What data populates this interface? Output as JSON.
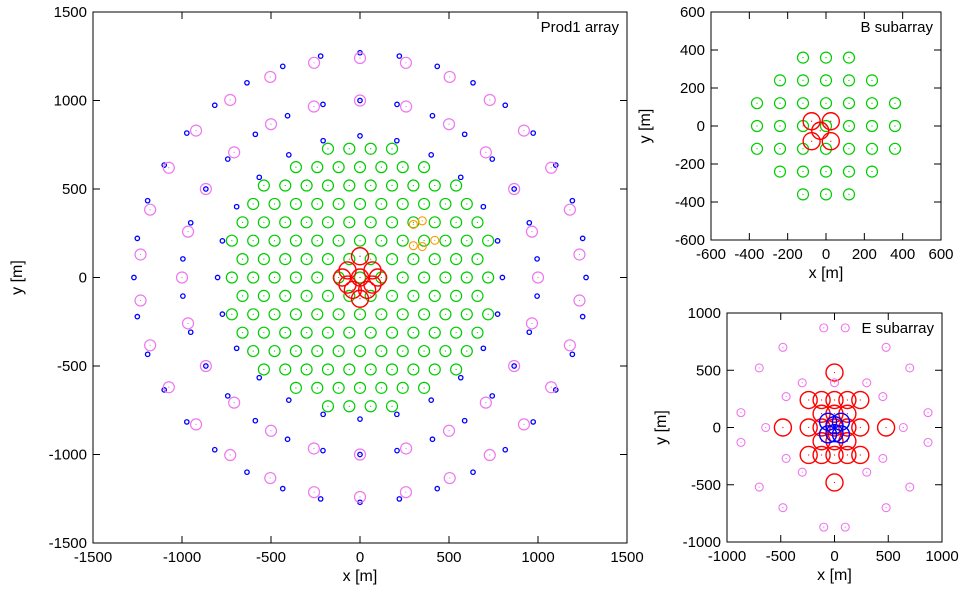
{
  "chart_data": [
    {
      "type": "scatter",
      "title": "Prod1 array",
      "xlabel": "x [m]",
      "ylabel": "y [m]",
      "xlim": [
        -1500,
        1500
      ],
      "ylim": [
        -1500,
        1500
      ],
      "xticks": [
        -1500,
        -1000,
        -500,
        0,
        500,
        1000,
        1500
      ],
      "yticks": [
        -1500,
        -1000,
        -500,
        0,
        500,
        1000,
        1500
      ],
      "grid": false,
      "legend": "none",
      "series": [
        {
          "color": "#00cc00",
          "marker": "medium-circle",
          "layout": "hexagonal grid",
          "spacing": 120,
          "max_radius": 750
        },
        {
          "color": "#ff0000",
          "marker": "large-circle",
          "points": [
            [
              0,
              120
            ],
            [
              -70,
              40
            ],
            [
              70,
              40
            ],
            [
              -70,
              -40
            ],
            [
              70,
              -40
            ],
            [
              0,
              -120
            ],
            [
              0,
              0
            ],
            [
              -40,
              -70
            ],
            [
              40,
              -70
            ],
            [
              -100,
              0
            ],
            [
              100,
              0
            ]
          ]
        },
        {
          "color": "#ff9900",
          "marker": "small-circle",
          "points": [
            [
              300,
              300
            ],
            [
              350,
              320
            ],
            [
              300,
              180
            ],
            [
              350,
              175
            ],
            [
              420,
              210
            ]
          ]
        },
        {
          "color": "#0000ff",
          "marker": "small-dot",
          "layout": "outer rings",
          "radii": [
            800,
            1000,
            1270
          ]
        },
        {
          "color": "#ee77ee",
          "marker": "medium-circle",
          "layout": "outermost rings",
          "radii": [
            1000,
            1240
          ]
        }
      ]
    },
    {
      "type": "scatter",
      "title": "B subarray",
      "xlabel": "x [m]",
      "ylabel": "y [m]",
      "xlim": [
        -600,
        600
      ],
      "ylim": [
        -600,
        600
      ],
      "xticks": [
        -600,
        -400,
        -200,
        0,
        200,
        400,
        600
      ],
      "yticks": [
        -600,
        -400,
        -200,
        0,
        200,
        400,
        600
      ],
      "grid": false,
      "series": [
        {
          "color": "#00cc00",
          "marker": "medium-circle",
          "points": [
            [
              -120,
              360
            ],
            [
              0,
              360
            ],
            [
              120,
              360
            ],
            [
              -240,
              240
            ],
            [
              -120,
              240
            ],
            [
              0,
              240
            ],
            [
              120,
              240
            ],
            [
              240,
              240
            ],
            [
              -360,
              120
            ],
            [
              -240,
              120
            ],
            [
              -120,
              120
            ],
            [
              0,
              120
            ],
            [
              120,
              120
            ],
            [
              240,
              120
            ],
            [
              360,
              120
            ],
            [
              -360,
              0
            ],
            [
              -240,
              0
            ],
            [
              -120,
              0
            ],
            [
              0,
              0
            ],
            [
              120,
              0
            ],
            [
              240,
              0
            ],
            [
              360,
              0
            ],
            [
              -360,
              -120
            ],
            [
              -240,
              -120
            ],
            [
              -120,
              -120
            ],
            [
              0,
              -120
            ],
            [
              120,
              -120
            ],
            [
              240,
              -120
            ],
            [
              360,
              -120
            ],
            [
              -240,
              -240
            ],
            [
              -120,
              -240
            ],
            [
              0,
              -240
            ],
            [
              120,
              -240
            ],
            [
              240,
              -240
            ],
            [
              -120,
              -360
            ],
            [
              0,
              -360
            ],
            [
              120,
              -360
            ]
          ]
        },
        {
          "color": "#ff0000",
          "marker": "large-circle",
          "points": [
            [
              -75,
              25
            ],
            [
              25,
              25
            ],
            [
              -30,
              -25
            ],
            [
              -75,
              -80
            ],
            [
              25,
              -80
            ]
          ]
        }
      ]
    },
    {
      "type": "scatter",
      "title": "E subarray",
      "xlabel": "x [m]",
      "ylabel": "y [m]",
      "xlim": [
        -1000,
        1000
      ],
      "ylim": [
        -1000,
        1000
      ],
      "xticks": [
        -1000,
        -500,
        0,
        500,
        1000
      ],
      "yticks": [
        -1000,
        -500,
        0,
        500,
        1000
      ],
      "grid": false,
      "series": [
        {
          "color": "#ff0000",
          "marker": "large-circle",
          "points": [
            [
              0,
              480
            ],
            [
              -240,
              240
            ],
            [
              -120,
              240
            ],
            [
              0,
              240
            ],
            [
              120,
              240
            ],
            [
              240,
              240
            ],
            [
              -120,
              120
            ],
            [
              0,
              120
            ],
            [
              120,
              120
            ],
            [
              -480,
              0
            ],
            [
              -240,
              0
            ],
            [
              -120,
              0
            ],
            [
              0,
              0
            ],
            [
              120,
              0
            ],
            [
              240,
              0
            ],
            [
              480,
              0
            ],
            [
              -120,
              -120
            ],
            [
              0,
              -120
            ],
            [
              120,
              -120
            ],
            [
              -240,
              -240
            ],
            [
              -120,
              -240
            ],
            [
              0,
              -240
            ],
            [
              120,
              -240
            ],
            [
              240,
              -240
            ],
            [
              0,
              -480
            ]
          ]
        },
        {
          "color": "#0000ff",
          "marker": "large-circle",
          "points": [
            [
              -60,
              50
            ],
            [
              0,
              20
            ],
            [
              60,
              50
            ],
            [
              -60,
              -60
            ],
            [
              0,
              -50
            ],
            [
              60,
              -60
            ]
          ]
        },
        {
          "color": "#ee77ee",
          "marker": "small-circle",
          "points": [
            [
              -100,
              870
            ],
            [
              100,
              870
            ],
            [
              -480,
              700
            ],
            [
              480,
              700
            ],
            [
              -700,
              520
            ],
            [
              700,
              520
            ],
            [
              -300,
              390
            ],
            [
              0,
              390
            ],
            [
              300,
              390
            ],
            [
              -450,
              270
            ],
            [
              450,
              270
            ],
            [
              -870,
              130
            ],
            [
              870,
              130
            ],
            [
              -870,
              -130
            ],
            [
              870,
              -130
            ],
            [
              -450,
              -270
            ],
            [
              450,
              -270
            ],
            [
              -300,
              -390
            ],
            [
              300,
              -390
            ],
            [
              -700,
              -520
            ],
            [
              700,
              -520
            ],
            [
              -480,
              -700
            ],
            [
              480,
              -700
            ],
            [
              -100,
              -870
            ],
            [
              100,
              -870
            ],
            [
              -640,
              0
            ],
            [
              640,
              0
            ]
          ]
        }
      ]
    }
  ]
}
